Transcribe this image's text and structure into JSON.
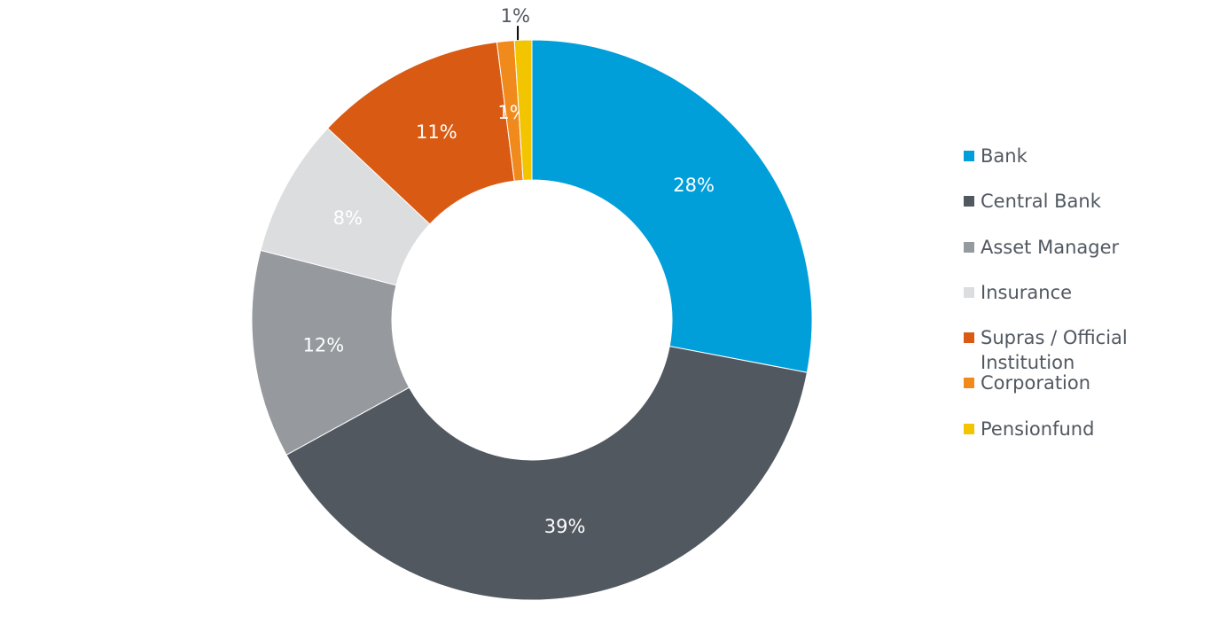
{
  "chart_data": {
    "type": "pie",
    "categories": [
      "Bank",
      "Central Bank",
      "Asset Manager",
      "Insurance",
      "Supras / Official Institution",
      "Corporation",
      "Pensionfund"
    ],
    "values": [
      28,
      39,
      12,
      8,
      11,
      1,
      1
    ],
    "value_labels": [
      "28%",
      "39%",
      "12%",
      "8%",
      "11%",
      "1%",
      "1%"
    ],
    "colors": [
      "#009fda",
      "#515860",
      "#969a9e",
      "#dcddde",
      "#d95a13",
      "#f08a1d",
      "#f2c500"
    ],
    "legend": "right"
  }
}
